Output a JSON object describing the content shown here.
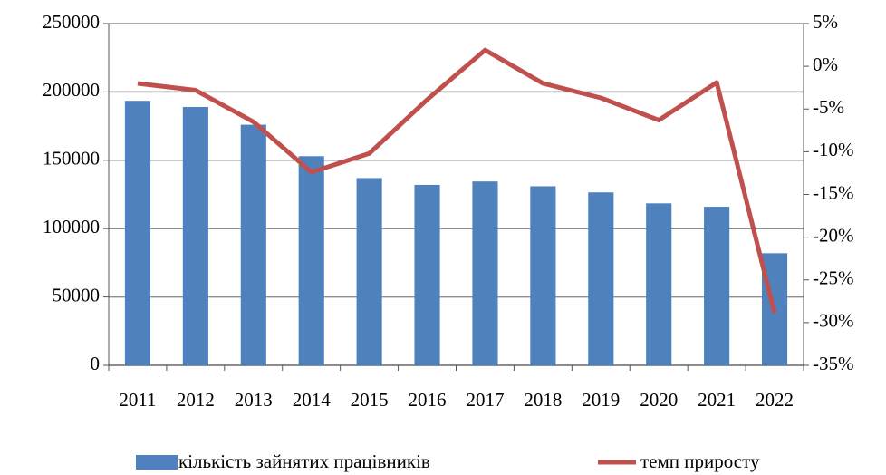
{
  "chart_data": {
    "type": "bar",
    "categories": [
      "2011",
      "2012",
      "2013",
      "2014",
      "2015",
      "2016",
      "2017",
      "2018",
      "2019",
      "2020",
      "2021",
      "2022"
    ],
    "series": [
      {
        "name": "кількість зайнятих працівників",
        "type": "bar",
        "color": "#4f81bd",
        "values": [
          193500,
          189000,
          176000,
          153000,
          137000,
          132000,
          134500,
          131000,
          126500,
          118500,
          116000,
          82000
        ]
      },
      {
        "name": "темп приросту",
        "type": "line",
        "axis": "y2",
        "color": "#c0504d",
        "values": [
          -2.0,
          -2.8,
          -6.5,
          -12.4,
          -10.2,
          -3.9,
          1.9,
          -2.0,
          -3.7,
          -6.3,
          -1.9,
          -28.9
        ]
      }
    ],
    "ylim": [
      0,
      250000
    ],
    "yticks": [
      0,
      50000,
      100000,
      150000,
      200000,
      250000
    ],
    "y2lim": [
      -35,
      5
    ],
    "y2ticks": [
      {
        "value": -35,
        "label": "-35%"
      },
      {
        "value": -30,
        "label": "-30%"
      },
      {
        "value": -25,
        "label": "-25%"
      },
      {
        "value": -20,
        "label": "-20%"
      },
      {
        "value": -15,
        "label": "-15%"
      },
      {
        "value": -10,
        "label": "-10%"
      },
      {
        "value": -5,
        "label": "-5%"
      },
      {
        "value": 0,
        "label": "0%"
      },
      {
        "value": 5,
        "label": "5%"
      }
    ],
    "grid": true,
    "legend": "bottom"
  }
}
